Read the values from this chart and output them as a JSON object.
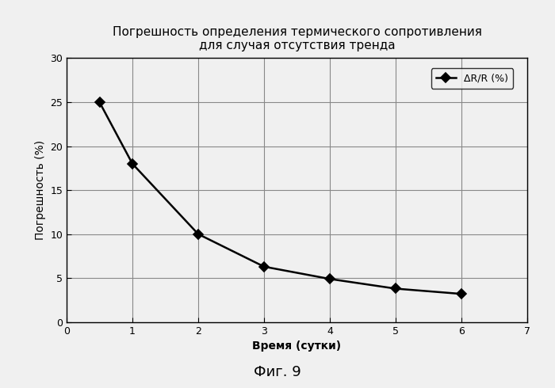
{
  "title_line1": "Погрешность определения термического сопротивления",
  "title_line2": "для случая отсутствия тренда",
  "xlabel": "Время (сутки)",
  "ylabel": "Погрешность (%)",
  "legend_label": "ΔR/R (%)",
  "x": [
    0.5,
    1,
    2,
    3,
    4,
    5,
    6
  ],
  "y": [
    25,
    18,
    10,
    6.3,
    4.9,
    3.8,
    3.2
  ],
  "xlim": [
    0,
    7
  ],
  "ylim": [
    0,
    30
  ],
  "xticks": [
    0,
    1,
    2,
    3,
    4,
    5,
    6,
    7
  ],
  "yticks": [
    0,
    5,
    10,
    15,
    20,
    25,
    30
  ],
  "line_color": "#000000",
  "marker": "D",
  "marker_size": 6,
  "marker_facecolor": "#000000",
  "background_color": "#f0f0f0",
  "plot_bg_color": "#f0f0f0",
  "grid_color": "#888888",
  "title_fontsize": 11,
  "label_fontsize": 10,
  "tick_fontsize": 9,
  "legend_fontsize": 9,
  "fig_caption": "Фиг. 9",
  "fig_caption_fontsize": 13
}
